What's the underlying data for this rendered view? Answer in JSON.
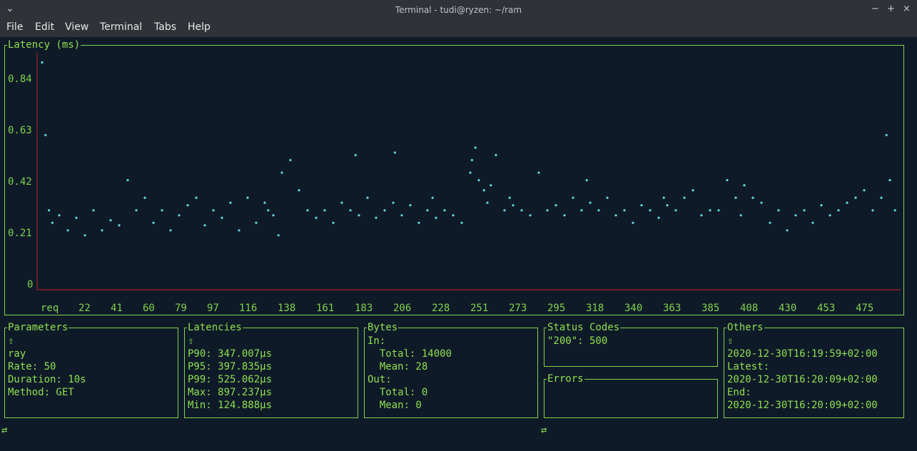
{
  "window": {
    "title": "Terminal - tudi@ryzen: ~/ram",
    "chevron_icon": "chevron-down",
    "controls": [
      "−",
      "+",
      "×"
    ]
  },
  "menu": [
    "File",
    "Edit",
    "View",
    "Terminal",
    "Tabs",
    "Help"
  ],
  "chart_panel": {
    "title": "Latency (ms)"
  },
  "chart_data": {
    "type": "scatter",
    "title": "Latency (ms)",
    "xlabel": "",
    "ylabel": "",
    "y_ticks": [
      "0.84",
      "0.63",
      "0.42",
      "0.21",
      "0"
    ],
    "x_ticks": [
      "req",
      "22",
      "41",
      "60",
      "79",
      "97",
      "116",
      "138",
      "161",
      "183",
      "206",
      "228",
      "251",
      "273",
      "295",
      "318",
      "340",
      "363",
      "385",
      "408",
      "430",
      "453",
      "475"
    ],
    "ylim": [
      0,
      0.9
    ],
    "xlim": [
      0,
      500
    ],
    "grid": false,
    "color": "#5fd8dc",
    "series": [
      {
        "x": [
          0,
          2,
          4,
          6,
          10,
          15,
          20,
          25,
          30,
          35,
          40,
          45,
          50,
          55,
          60,
          65,
          70,
          75,
          80,
          85,
          90,
          95,
          100,
          105,
          110,
          115,
          120,
          125,
          130,
          132,
          135,
          138,
          140,
          145,
          150,
          155,
          160,
          165,
          170,
          175,
          180,
          183,
          185,
          190,
          195,
          200,
          205,
          206,
          210,
          215,
          220,
          225,
          228,
          230,
          235,
          240,
          245,
          250,
          251,
          253,
          255,
          258,
          260,
          262,
          265,
          270,
          273,
          275,
          280,
          285,
          290,
          295,
          300,
          305,
          310,
          315,
          318,
          320,
          325,
          330,
          335,
          340,
          345,
          350,
          355,
          360,
          363,
          365,
          370,
          375,
          380,
          385,
          390,
          395,
          400,
          405,
          408,
          410,
          415,
          420,
          425,
          430,
          435,
          440,
          445,
          450,
          455,
          460,
          465,
          470,
          475,
          480,
          485,
          490,
          493,
          495,
          498
        ],
        "y": [
          0.89,
          0.6,
          0.3,
          0.25,
          0.28,
          0.22,
          0.27,
          0.2,
          0.3,
          0.22,
          0.26,
          0.24,
          0.42,
          0.3,
          0.35,
          0.25,
          0.3,
          0.22,
          0.28,
          0.32,
          0.35,
          0.24,
          0.3,
          0.27,
          0.33,
          0.22,
          0.35,
          0.25,
          0.33,
          0.3,
          0.28,
          0.2,
          0.45,
          0.5,
          0.38,
          0.3,
          0.27,
          0.3,
          0.25,
          0.33,
          0.3,
          0.52,
          0.28,
          0.35,
          0.27,
          0.3,
          0.33,
          0.53,
          0.28,
          0.32,
          0.25,
          0.3,
          0.35,
          0.27,
          0.3,
          0.28,
          0.25,
          0.45,
          0.5,
          0.55,
          0.42,
          0.38,
          0.33,
          0.4,
          0.52,
          0.3,
          0.35,
          0.32,
          0.3,
          0.28,
          0.45,
          0.3,
          0.32,
          0.28,
          0.35,
          0.3,
          0.42,
          0.33,
          0.3,
          0.35,
          0.28,
          0.3,
          0.25,
          0.32,
          0.3,
          0.27,
          0.35,
          0.32,
          0.3,
          0.35,
          0.38,
          0.28,
          0.3,
          0.3,
          0.42,
          0.35,
          0.28,
          0.4,
          0.35,
          0.33,
          0.25,
          0.3,
          0.22,
          0.28,
          0.3,
          0.25,
          0.32,
          0.28,
          0.3,
          0.33,
          0.35,
          0.38,
          0.3,
          0.35,
          0.6,
          0.42,
          0.3
        ]
      }
    ]
  },
  "panels": {
    "parameters": {
      "title": "Parameters",
      "lines": [
        "⇧",
        "ray",
        "Rate: 50",
        "Duration: 10s",
        "Method: GET"
      ]
    },
    "latencies": {
      "title": "Latencies",
      "lines": [
        "⇧",
        "P90: 347.007µs",
        "P95: 397.835µs",
        "P99: 525.062µs",
        "Max: 897.237µs",
        "Min: 124.888µs"
      ]
    },
    "bytes": {
      "title": "Bytes",
      "lines": [
        "In:",
        "  Total: 14000",
        "  Mean: 28",
        "Out:",
        "  Total: 0",
        "  Mean: 0"
      ]
    },
    "status_codes": {
      "title": "Status Codes",
      "lines": [
        "\"200\": 500"
      ]
    },
    "errors": {
      "title": "Errors",
      "lines": []
    },
    "others": {
      "title": "Others",
      "lines": [
        "⇧",
        "2020-12-30T16:19:59+02:00",
        "Latest:",
        "2020-12-30T16:20:09+02:00",
        "End:",
        "2020-12-30T16:20:09+02:00"
      ]
    }
  },
  "footer": {
    "left_symbol": "⇄",
    "right_symbol": "⇄"
  }
}
